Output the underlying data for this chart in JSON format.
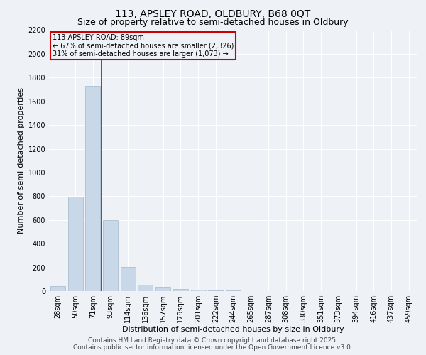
{
  "title": "113, APSLEY ROAD, OLDBURY, B68 0QT",
  "subtitle": "Size of property relative to semi-detached houses in Oldbury",
  "xlabel": "Distribution of semi-detached houses by size in Oldbury",
  "ylabel": "Number of semi-detached properties",
  "categories": [
    "28sqm",
    "50sqm",
    "71sqm",
    "93sqm",
    "114sqm",
    "136sqm",
    "157sqm",
    "179sqm",
    "201sqm",
    "222sqm",
    "244sqm",
    "265sqm",
    "287sqm",
    "308sqm",
    "330sqm",
    "351sqm",
    "373sqm",
    "394sqm",
    "416sqm",
    "437sqm",
    "459sqm"
  ],
  "values": [
    40,
    795,
    1730,
    600,
    205,
    55,
    35,
    18,
    10,
    5,
    3,
    2,
    1,
    1,
    0,
    0,
    0,
    0,
    0,
    0,
    0
  ],
  "bar_color": "#c8d8e8",
  "bar_edgecolor": "#a0b8cc",
  "vline_color": "#cc0000",
  "vline_x": 2.5,
  "annotation_title": "113 APSLEY ROAD: 89sqm",
  "annotation_line1": "← 67% of semi-detached houses are smaller (2,326)",
  "annotation_line2": "31% of semi-detached houses are larger (1,073) →",
  "annotation_box_color": "#cc0000",
  "ylim": [
    0,
    2200
  ],
  "yticks": [
    0,
    200,
    400,
    600,
    800,
    1000,
    1200,
    1400,
    1600,
    1800,
    2000,
    2200
  ],
  "background_color": "#eef2f7",
  "grid_color": "#ffffff",
  "footer_line1": "Contains HM Land Registry data © Crown copyright and database right 2025.",
  "footer_line2": "Contains public sector information licensed under the Open Government Licence v3.0.",
  "title_fontsize": 10,
  "subtitle_fontsize": 9,
  "axis_label_fontsize": 8,
  "tick_fontsize": 7,
  "footer_fontsize": 6.5
}
